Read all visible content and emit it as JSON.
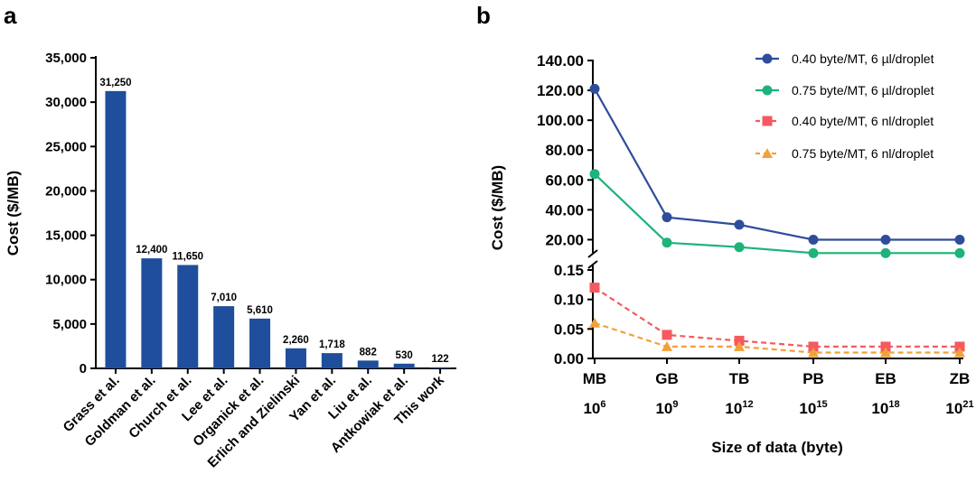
{
  "panels": {
    "a": "a",
    "b": "b"
  },
  "chart_data": [
    {
      "type": "bar",
      "ylabel": "Cost ($/MB)",
      "xlabel": "",
      "ylim": [
        0,
        35000
      ],
      "yticks": [
        0,
        5000,
        10000,
        15000,
        20000,
        25000,
        30000,
        35000
      ],
      "ytick_labels": [
        "0",
        "5,000",
        "10,000",
        "15,000",
        "20,000",
        "25,000",
        "30,000",
        "35,000"
      ],
      "categories": [
        "Grass et al.",
        "Goldman et al.",
        "Church et al.",
        "Lee et al.",
        "Organick et al.",
        "Erlich and Zielinski",
        "Yan et al.",
        "Liu et al.",
        "Antkowiak et al.",
        "This work"
      ],
      "values": [
        31250,
        12400,
        11650,
        7010,
        5610,
        2260,
        1718,
        882,
        530,
        122
      ],
      "value_labels": [
        "31,250",
        "12,400",
        "11,650",
        "7,010",
        "5,610",
        "2,260",
        "1,718",
        "882",
        "530",
        "122"
      ],
      "bar_color": "#1f4e9c"
    },
    {
      "type": "line",
      "xlabel": "Size of data (byte)",
      "ylabel": "Cost ($/MB)",
      "x_categories": [
        "MB",
        "GB",
        "TB",
        "PB",
        "EB",
        "ZB"
      ],
      "x_sublabels": [
        {
          "base": "10",
          "exp": "6"
        },
        {
          "base": "10",
          "exp": "9"
        },
        {
          "base": "10",
          "exp": "12"
        },
        {
          "base": "10",
          "exp": "15"
        },
        {
          "base": "10",
          "exp": "18"
        },
        {
          "base": "10",
          "exp": "21"
        }
      ],
      "broken_y_axis": true,
      "upper_segment": {
        "ylim": [
          10,
          140
        ],
        "ticks": [
          20,
          40,
          60,
          80,
          100,
          120,
          140
        ],
        "tick_labels": [
          "20.00",
          "40.00",
          "60.00",
          "80.00",
          "100.00",
          "120.00",
          "140.00"
        ]
      },
      "lower_segment": {
        "ylim": [
          0,
          0.15
        ],
        "ticks": [
          0,
          0.05,
          0.1,
          0.15
        ],
        "tick_labels": [
          "0.00",
          "0.05",
          "0.10",
          "0.15"
        ]
      },
      "legend_position": "top-right",
      "series": [
        {
          "name": "0.40 byte/MT, 6 µl/droplet",
          "values": [
            121,
            35,
            30,
            20,
            20,
            20
          ],
          "segment": "upper",
          "color": "#2f4d9b",
          "marker": "circle",
          "dashed": false
        },
        {
          "name": "0.75 byte/MT, 6 µl/droplet",
          "values": [
            64,
            18,
            15,
            11,
            11,
            11
          ],
          "segment": "upper",
          "color": "#1db37a",
          "marker": "circle",
          "dashed": false
        },
        {
          "name": "0.40 byte/MT, 6 nl/droplet",
          "values": [
            0.12,
            0.04,
            0.03,
            0.02,
            0.02,
            0.02
          ],
          "segment": "lower",
          "color": "#f45a5f",
          "marker": "square",
          "dashed": true
        },
        {
          "name": "0.75 byte/MT, 6 nl/droplet",
          "values": [
            0.06,
            0.02,
            0.02,
            0.01,
            0.01,
            0.01
          ],
          "segment": "lower",
          "color": "#f4a03a",
          "marker": "triangle",
          "dashed": true
        }
      ]
    }
  ]
}
